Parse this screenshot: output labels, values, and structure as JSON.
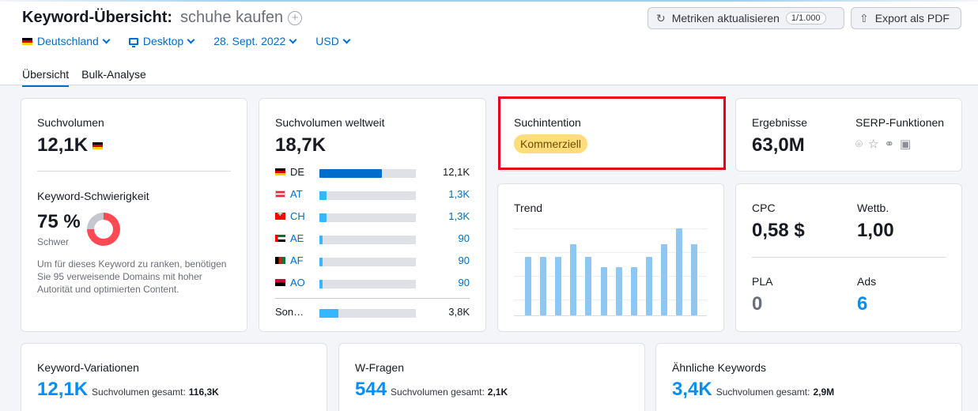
{
  "header": {
    "title": "Keyword-Übersicht:",
    "keyword": "schuhe kaufen",
    "refresh_label": "Metriken aktualisieren",
    "refresh_counter": "1/1.000",
    "export_label": "Export als PDF"
  },
  "filters": {
    "country": "Deutschland",
    "device": "Desktop",
    "date": "28. Sept. 2022",
    "currency": "USD"
  },
  "tabs": [
    {
      "label": "Übersicht",
      "active": true
    },
    {
      "label": "Bulk-Analyse",
      "active": false
    }
  ],
  "volume_card": {
    "title": "Suchvolumen",
    "value": "12,1K",
    "difficulty_title": "Keyword-Schwierigkeit",
    "difficulty_value": "75 %",
    "difficulty_level": "Schwer",
    "difficulty_percent": 75,
    "description": "Um für dieses Keyword zu ranken, benötigen Sie 95 verweisende Domains mit hoher Autorität und optimierten Content."
  },
  "global_card": {
    "title": "Suchvolumen weltweit",
    "value": "18,7K",
    "countries": [
      {
        "code": "DE",
        "flag": "de",
        "value": "12,1K",
        "share": 0.65,
        "link": false
      },
      {
        "code": "AT",
        "flag": "at",
        "value": "1,3K",
        "share": 0.07,
        "link": true
      },
      {
        "code": "CH",
        "flag": "ch",
        "value": "1,3K",
        "share": 0.07,
        "link": true
      },
      {
        "code": "AE",
        "flag": "ae",
        "value": "90",
        "share": 0.02,
        "link": true
      },
      {
        "code": "AF",
        "flag": "af",
        "value": "90",
        "share": 0.02,
        "link": true
      },
      {
        "code": "AO",
        "flag": "ao",
        "value": "90",
        "share": 0.02,
        "link": true
      }
    ],
    "other": {
      "code": "Son…",
      "value": "3,8K",
      "share": 0.2
    }
  },
  "intent_card": {
    "title": "Suchintention",
    "badge": "Kommerziell"
  },
  "results_card": {
    "results_title": "Ergebnisse",
    "results_value": "63,0M",
    "serp_title": "SERP-Funktionen",
    "serp_icons": [
      "location-pin-icon",
      "star-icon",
      "link-icon",
      "image-icon"
    ]
  },
  "trend_card": {
    "title": "Trend",
    "values": [
      0.67,
      0.67,
      0.67,
      0.82,
      0.67,
      0.55,
      0.55,
      0.55,
      0.67,
      0.82,
      1.0,
      0.82
    ]
  },
  "cpc_card": {
    "cpc_title": "CPC",
    "cpc_value": "0,58 $",
    "comp_title": "Wettb.",
    "comp_value": "1,00",
    "pla_title": "PLA",
    "pla_value": "0",
    "ads_title": "Ads",
    "ads_value": "6"
  },
  "bottom_cards": [
    {
      "title": "Keyword-Variationen",
      "value": "12,1K",
      "sub_label": "Suchvolumen gesamt:",
      "sub_value": "116,3K"
    },
    {
      "title": "W-Fragen",
      "value": "544",
      "sub_label": "Suchvolumen gesamt:",
      "sub_value": "2,1K"
    },
    {
      "title": "Ähnliche Keywords",
      "value": "3,4K",
      "sub_label": "Suchvolumen gesamt:",
      "sub_value": "2,9M"
    }
  ],
  "colors": {
    "accent": "#006dca",
    "bar_de": "#006dca",
    "bar_other": "#35b6ff",
    "bar_track": "#dfe1e7",
    "trend_bar": "#8ec8f2",
    "difficulty": "#ff4953",
    "badge_bg": "#ffdd7a",
    "highlight": "#e8001a"
  }
}
